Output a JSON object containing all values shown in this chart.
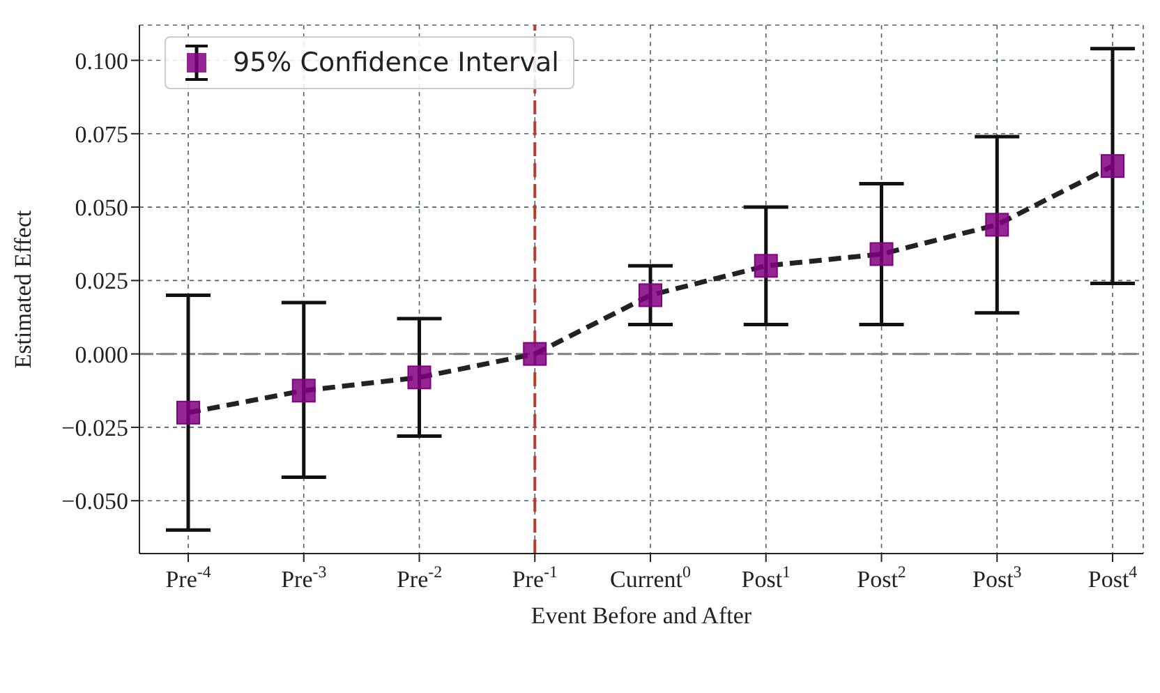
{
  "chart_data": {
    "type": "line",
    "xlabel": "Event Before and After",
    "ylabel": "Estimated Effect",
    "categories": [
      "Pre$^{-4}$",
      "Pre$^{-3}$",
      "Pre$^{-2}$",
      "Pre$^{-1}$",
      "Current$^{0}$",
      "Post$^{1}$",
      "Post$^{2}$",
      "Post$^{3}$",
      "Post$^{4}$"
    ],
    "series": [
      {
        "name": "95% Confidence Interval",
        "color": "#800080",
        "values": [
          -0.02,
          -0.0125,
          -0.008,
          0,
          0.02,
          0.03,
          0.034,
          0.044,
          0.064
        ],
        "errors": [
          [
            -0.06,
            0.02
          ],
          [
            -0.042,
            0.0175
          ],
          [
            -0.028,
            0.012
          ],
          null,
          [
            0.01,
            0.03
          ],
          [
            0.01,
            0.05
          ],
          [
            0.01,
            0.058
          ],
          [
            0.014,
            0.074
          ],
          [
            0.024,
            0.104
          ]
        ]
      }
    ],
    "ylim": [
      -0.068,
      0.112
    ],
    "yticks": [
      {
        "value": -0.05,
        "label": "−0.050"
      },
      {
        "value": -0.025,
        "label": "−0.025"
      },
      {
        "value": 0,
        "label": "0.000"
      },
      {
        "value": 0.025,
        "label": "0.025"
      },
      {
        "value": 0.05,
        "label": "0.050"
      },
      {
        "value": 0.075,
        "label": "0.075"
      },
      {
        "value": 0.1,
        "label": "0.100"
      }
    ],
    "ref_lines": [
      {
        "axis": "x",
        "value": "Pre$^{-1}$",
        "color": "#c0392b",
        "line_style": "dashed"
      },
      {
        "axis": "y",
        "value": 0,
        "color": "#808080",
        "line_style": "dashed"
      }
    ],
    "grid": true,
    "legend": "top left",
    "marker": "square",
    "line_style": "dashed"
  }
}
